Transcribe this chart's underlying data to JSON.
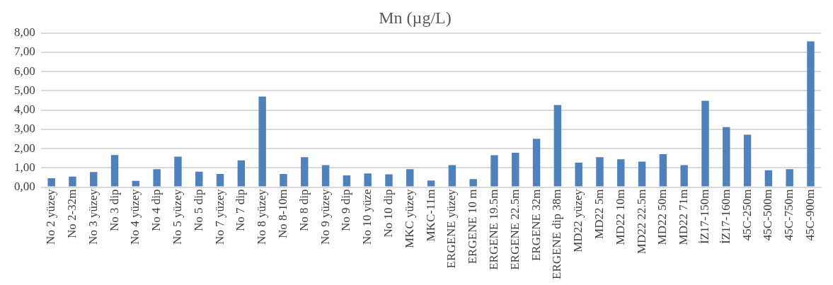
{
  "chart_data": {
    "type": "bar",
    "title": "Mn (µg/L)",
    "categories": [
      "No 2 yüzey",
      "No 2-32m",
      "No 3 yüzey",
      "No 3 dip",
      "No 4 yüzey",
      "No 4 dip",
      "No 5 yüzey",
      "No 5 dip",
      "No 7 yüzey",
      "No 7 dip",
      "No 8 yüzey",
      "No 8-10m",
      "No 8 dip",
      "No 9 yüzey",
      "No 9 dip",
      "No 10 yüze",
      "No 10 dip",
      "MKC yüzey",
      "MKC-11m",
      "ERGENE yüzey",
      "ERGENE 10 m",
      "ERGENE 19.5m",
      "ERGENE 22.5m",
      "ERGENE 32m",
      "ERGENE dip 38m",
      "MD22 yüzey",
      "MD22 5m",
      "MD22 10m",
      "MD22 22.5m",
      "MD22 50m",
      "MD22 71m",
      "İZ17-150m",
      "İZ17-160m",
      "45C-250m",
      "45C-500m",
      "45C-750m",
      "45C-900m"
    ],
    "values": [
      0.46,
      0.54,
      0.78,
      1.66,
      0.32,
      0.93,
      1.58,
      0.8,
      0.68,
      1.39,
      4.7,
      0.68,
      1.55,
      1.14,
      0.61,
      0.71,
      0.66,
      0.93,
      0.34,
      1.14,
      0.41,
      1.65,
      1.78,
      2.51,
      4.26,
      1.27,
      1.55,
      1.44,
      1.32,
      1.71,
      1.14,
      4.48,
      3.11,
      2.72,
      0.87,
      0.93,
      7.57
    ],
    "color": "#4f81bd",
    "ylim": [
      0,
      8
    ],
    "yticks": [
      {
        "value": 0,
        "label": "0,00"
      },
      {
        "value": 1,
        "label": "1,00"
      },
      {
        "value": 2,
        "label": "2,00"
      },
      {
        "value": 3,
        "label": "3,00"
      },
      {
        "value": 4,
        "label": "4,00"
      },
      {
        "value": 5,
        "label": "5,00"
      },
      {
        "value": 6,
        "label": "6,00"
      },
      {
        "value": 7,
        "label": "7,00"
      },
      {
        "value": 8,
        "label": "8,00"
      }
    ],
    "grid": "y"
  }
}
